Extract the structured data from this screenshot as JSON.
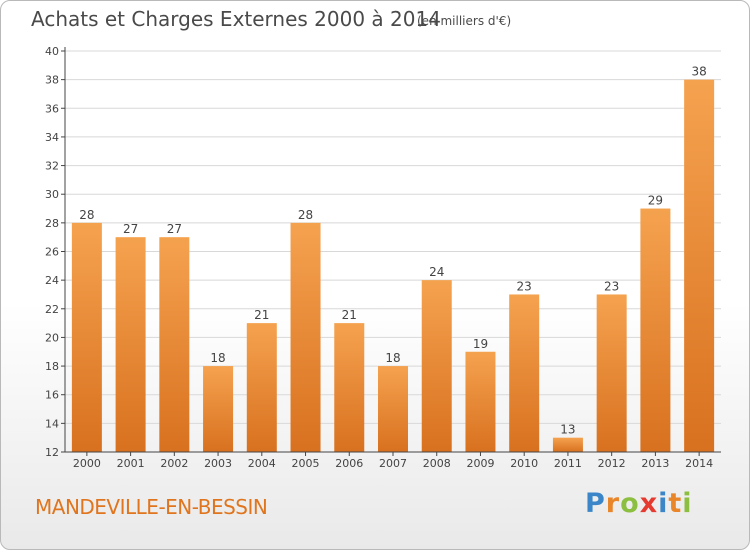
{
  "header": {
    "title": "Achats et Charges Externes 2000 à 2014",
    "unit": "(en milliers d'€)"
  },
  "footer": {
    "city": "MANDEVILLE-EN-BESSIN",
    "logo_letters": [
      "P",
      "r",
      "o",
      "x",
      "i",
      "t",
      "i"
    ],
    "logo_colors": [
      "#3a86c8",
      "#e9862a",
      "#8cbf3f",
      "#e53a2f",
      "#3a86c8",
      "#e9862a",
      "#8cbf3f"
    ]
  },
  "colors": {
    "bar_top": "#f5a24f",
    "bar_bottom": "#d8711f",
    "grid": "#d8d8d8",
    "axis": "#444444",
    "text": "#444444",
    "city": "#e0751e"
  },
  "chart_data": {
    "type": "bar",
    "title": "Achats et Charges Externes 2000 à 2014",
    "categories": [
      "2000",
      "2001",
      "2002",
      "2003",
      "2004",
      "2005",
      "2006",
      "2007",
      "2008",
      "2009",
      "2010",
      "2011",
      "2012",
      "2013",
      "2014"
    ],
    "values": [
      28,
      27,
      27,
      18,
      21,
      28,
      21,
      18,
      24,
      19,
      23,
      13,
      23,
      29,
      38
    ],
    "ylim": [
      12,
      40
    ],
    "yticks": [
      12,
      14,
      16,
      18,
      20,
      22,
      24,
      26,
      28,
      30,
      32,
      34,
      36,
      38,
      40
    ],
    "grid": true
  }
}
